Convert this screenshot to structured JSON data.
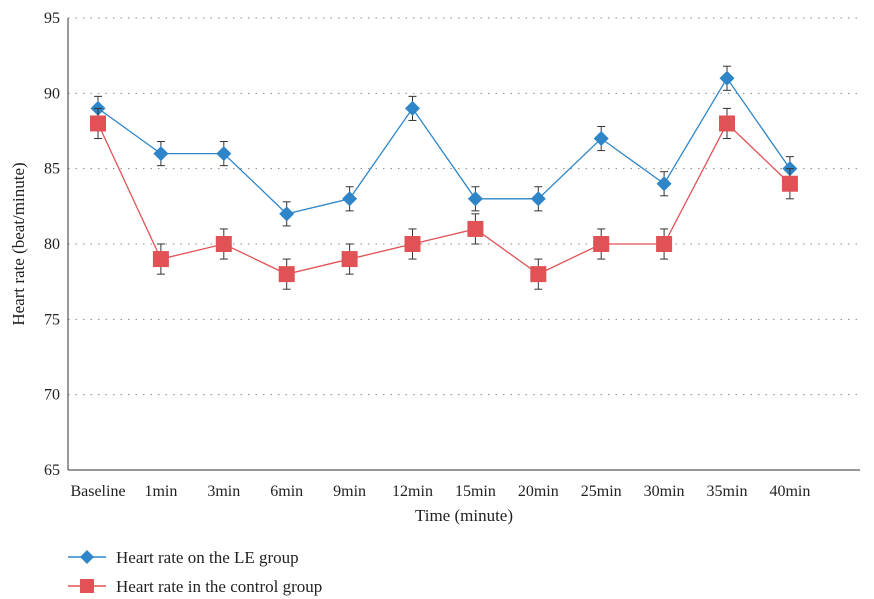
{
  "chart_data": {
    "type": "line",
    "title": "",
    "xlabel": "Time (minute)",
    "ylabel": "Heart rate (beat/minute)",
    "ylim": [
      65,
      95
    ],
    "yticks": [
      65,
      70,
      75,
      80,
      85,
      90,
      95
    ],
    "grid": "horizontal dotted",
    "legend_position": "bottom-left",
    "categories": [
      "Baseline",
      "1min",
      "3min",
      "6min",
      "9min",
      "12min",
      "15min",
      "20min",
      "25min",
      "30min",
      "35min",
      "40min"
    ],
    "series": [
      {
        "name": "Heart rate on the LE group",
        "color": "#2e86c8",
        "marker": "diamond",
        "values": [
          89,
          86,
          86,
          82,
          83,
          89,
          83,
          83,
          87,
          84,
          91,
          85
        ],
        "error": [
          0.8,
          0.8,
          0.8,
          0.8,
          0.8,
          0.8,
          0.8,
          0.8,
          0.8,
          0.8,
          0.8,
          0.8
        ]
      },
      {
        "name": "Heart rate in the control group",
        "color": "#e05256",
        "marker": "square",
        "values": [
          88,
          79,
          80,
          78,
          79,
          80,
          81,
          78,
          80,
          80,
          88,
          84
        ],
        "error": [
          1,
          1,
          1,
          1,
          1,
          1,
          1,
          1,
          1,
          1,
          1,
          1
        ]
      }
    ]
  }
}
